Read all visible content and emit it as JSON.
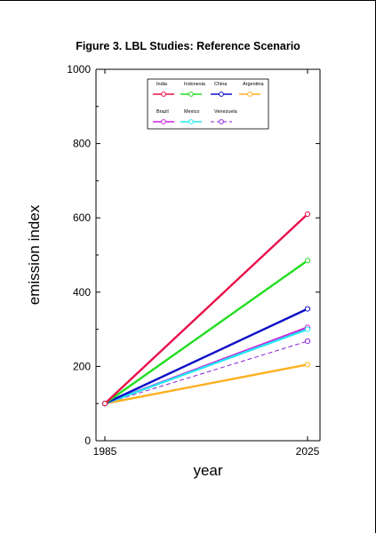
{
  "chart_data": {
    "type": "line",
    "title": "Figure 3. LBL Studies: Reference Scenario",
    "xlabel": "year",
    "ylabel": "emission index",
    "xlim": [
      1985,
      2025
    ],
    "ylim": [
      0,
      1000
    ],
    "x_ticks": [
      "1985",
      "2025"
    ],
    "y_ticks": [
      "0",
      "200",
      "400",
      "600",
      "800",
      "1000"
    ],
    "grid": false,
    "legend_position": "top-center",
    "x": [
      1985,
      2025
    ],
    "series": [
      {
        "name": "India",
        "values": [
          100,
          610
        ],
        "color": "#e8104a",
        "dash": false
      },
      {
        "name": "Indonesia",
        "values": [
          100,
          485
        ],
        "color": "#22dd22",
        "dash": false
      },
      {
        "name": "China",
        "values": [
          100,
          355
        ],
        "color": "#1010c8",
        "dash": false
      },
      {
        "name": "Argentina",
        "values": [
          100,
          205
        ],
        "color": "#ffb020",
        "dash": false
      },
      {
        "name": "Brazil",
        "values": [
          100,
          305
        ],
        "color": "#cc22dd",
        "dash": false
      },
      {
        "name": "Mexico",
        "values": [
          100,
          300
        ],
        "color": "#22e8f0",
        "dash": false
      },
      {
        "name": "Venezuela",
        "values": [
          100,
          268
        ],
        "color": "#8a22d8",
        "dash": true
      }
    ]
  }
}
